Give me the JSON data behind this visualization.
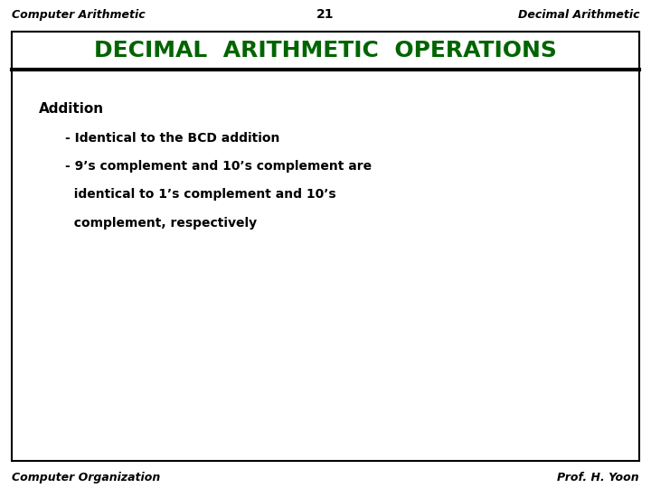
{
  "header_left": "Computer Arithmetic",
  "header_center": "21",
  "header_right": "Decimal Arithmetic",
  "title": "DECIMAL  ARITHMETIC  OPERATIONS",
  "title_color": "#006400",
  "section_heading": "Addition",
  "bullet1": "- Identical to the BCD addition",
  "bullet2": "- 9’s complement and 10’s complement are",
  "bullet2b": "  identical to 1’s complement and 10’s",
  "bullet2c": "  complement, respectively",
  "footer_left": "Computer Organization",
  "footer_right": "Prof. H. Yoon",
  "bg_color": "#ffffff",
  "border_color": "#000000",
  "header_font_size": 9,
  "title_font_size": 18,
  "section_font_size": 11,
  "body_font_size": 10,
  "footer_font_size": 9
}
